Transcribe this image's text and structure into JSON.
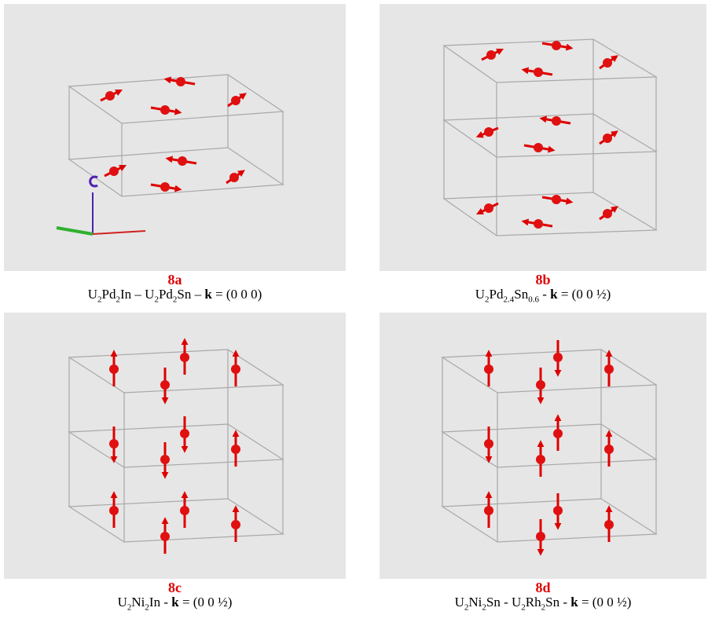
{
  "panels": [
    {
      "label": "8a",
      "caption": [
        {
          "text": "U",
          "style": "normal"
        },
        {
          "text": "2",
          "style": "sub"
        },
        {
          "text": "Pd",
          "style": "normal"
        },
        {
          "text": "2",
          "style": "sub"
        },
        {
          "text": "In – U",
          "style": "normal"
        },
        {
          "text": "2",
          "style": "sub"
        },
        {
          "text": "Pd",
          "style": "normal"
        },
        {
          "text": "2",
          "style": "sub"
        },
        {
          "text": "Sn – ",
          "style": "normal"
        },
        {
          "text": "k",
          "style": "bold"
        },
        {
          "text": " = (0 0 0)",
          "style": "normal"
        }
      ]
    },
    {
      "label": "8b",
      "caption": [
        {
          "text": "U",
          "style": "normal"
        },
        {
          "text": "2",
          "style": "sub"
        },
        {
          "text": "Pd",
          "style": "normal"
        },
        {
          "text": "2.4",
          "style": "sub"
        },
        {
          "text": "Sn",
          "style": "normal"
        },
        {
          "text": "0.6",
          "style": "sub"
        },
        {
          "text": " - ",
          "style": "normal"
        },
        {
          "text": "k",
          "style": "bold"
        },
        {
          "text": " = (0 0 ½)",
          "style": "normal"
        }
      ]
    },
    {
      "label": "8c",
      "caption": [
        {
          "text": "U",
          "style": "normal"
        },
        {
          "text": "2",
          "style": "sub"
        },
        {
          "text": "Ni",
          "style": "normal"
        },
        {
          "text": "2",
          "style": "sub"
        },
        {
          "text": "In - ",
          "style": "normal"
        },
        {
          "text": "k",
          "style": "bold"
        },
        {
          "text": " = (0 0 ½)",
          "style": "normal"
        }
      ]
    },
    {
      "label": "8d",
      "caption": [
        {
          "text": "U",
          "style": "normal"
        },
        {
          "text": "2",
          "style": "sub"
        },
        {
          "text": "Ni",
          "style": "normal"
        },
        {
          "text": "2",
          "style": "sub"
        },
        {
          "text": "Sn - U",
          "style": "normal"
        },
        {
          "text": "2",
          "style": "sub"
        },
        {
          "text": "Rh",
          "style": "normal"
        },
        {
          "text": "2",
          "style": "sub"
        },
        {
          "text": "Sn - ",
          "style": "normal"
        },
        {
          "text": "k",
          "style": "bold"
        },
        {
          "text": " = (0 0 ½)",
          "style": "normal"
        }
      ]
    }
  ]
}
